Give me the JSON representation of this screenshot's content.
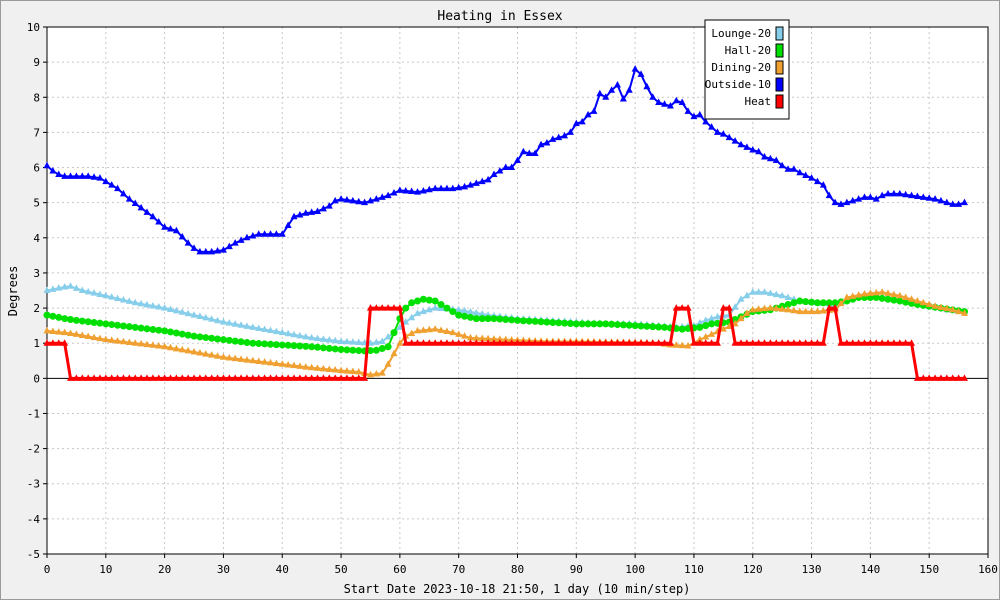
{
  "chart_data": {
    "type": "line",
    "title": "Heating in Essex",
    "xlabel": "Start Date 2023-10-18 21:50, 1 day (10 min/step)",
    "ylabel": "Degrees",
    "xlim": [
      0,
      160
    ],
    "ylim": [
      -5,
      10
    ],
    "x_ticks": [
      0,
      10,
      20,
      30,
      40,
      50,
      60,
      70,
      80,
      90,
      100,
      110,
      120,
      130,
      140,
      150,
      160
    ],
    "y_ticks": [
      -5,
      -4,
      -3,
      -2,
      -1,
      0,
      1,
      2,
      3,
      4,
      5,
      6,
      7,
      8,
      9,
      10
    ],
    "grid": true,
    "legend_position": "top-right",
    "series": [
      {
        "name": "Lounge-20",
        "color": "#87ceeb",
        "marker": "triangle",
        "points": [
          [
            0,
            2.5
          ],
          [
            3,
            2.6
          ],
          [
            4,
            2.62
          ],
          [
            6,
            2.5
          ],
          [
            10,
            2.35
          ],
          [
            15,
            2.15
          ],
          [
            20,
            2.0
          ],
          [
            25,
            1.8
          ],
          [
            30,
            1.6
          ],
          [
            35,
            1.45
          ],
          [
            40,
            1.3
          ],
          [
            45,
            1.15
          ],
          [
            50,
            1.05
          ],
          [
            55,
            1.0
          ],
          [
            57,
            1.05
          ],
          [
            59,
            1.3
          ],
          [
            61,
            1.6
          ],
          [
            63,
            1.85
          ],
          [
            66,
            2.0
          ],
          [
            70,
            1.95
          ],
          [
            75,
            1.8
          ],
          [
            80,
            1.7
          ],
          [
            85,
            1.65
          ],
          [
            90,
            1.6
          ],
          [
            95,
            1.55
          ],
          [
            100,
            1.55
          ],
          [
            104,
            1.5
          ],
          [
            107,
            1.45
          ],
          [
            110,
            1.5
          ],
          [
            112,
            1.65
          ],
          [
            114,
            1.75
          ],
          [
            116,
            1.8
          ],
          [
            118,
            2.25
          ],
          [
            120,
            2.45
          ],
          [
            122,
            2.45
          ],
          [
            125,
            2.35
          ],
          [
            128,
            2.2
          ],
          [
            131,
            2.15
          ],
          [
            134,
            2.1
          ],
          [
            137,
            2.3
          ],
          [
            140,
            2.35
          ],
          [
            143,
            2.3
          ],
          [
            146,
            2.2
          ],
          [
            150,
            2.05
          ],
          [
            153,
            1.95
          ],
          [
            156,
            1.9
          ]
        ]
      },
      {
        "name": "Hall-20",
        "color": "#00e000",
        "marker": "circle",
        "points": [
          [
            0,
            1.8
          ],
          [
            3,
            1.7
          ],
          [
            5,
            1.65
          ],
          [
            10,
            1.55
          ],
          [
            15,
            1.45
          ],
          [
            20,
            1.35
          ],
          [
            25,
            1.2
          ],
          [
            30,
            1.1
          ],
          [
            35,
            1.0
          ],
          [
            40,
            0.95
          ],
          [
            45,
            0.9
          ],
          [
            50,
            0.82
          ],
          [
            54,
            0.78
          ],
          [
            56,
            0.8
          ],
          [
            58,
            0.9
          ],
          [
            59,
            1.3
          ],
          [
            60,
            1.7
          ],
          [
            61,
            2.0
          ],
          [
            62,
            2.15
          ],
          [
            64,
            2.25
          ],
          [
            66,
            2.2
          ],
          [
            68,
            2.0
          ],
          [
            70,
            1.8
          ],
          [
            73,
            1.7
          ],
          [
            76,
            1.7
          ],
          [
            80,
            1.65
          ],
          [
            85,
            1.6
          ],
          [
            90,
            1.55
          ],
          [
            95,
            1.55
          ],
          [
            100,
            1.5
          ],
          [
            105,
            1.45
          ],
          [
            108,
            1.4
          ],
          [
            111,
            1.45
          ],
          [
            113,
            1.55
          ],
          [
            116,
            1.6
          ],
          [
            118,
            1.75
          ],
          [
            120,
            1.9
          ],
          [
            123,
            1.95
          ],
          [
            126,
            2.1
          ],
          [
            128,
            2.2
          ],
          [
            131,
            2.15
          ],
          [
            134,
            2.15
          ],
          [
            136,
            2.2
          ],
          [
            138,
            2.3
          ],
          [
            141,
            2.3
          ],
          [
            145,
            2.2
          ],
          [
            148,
            2.1
          ],
          [
            152,
            2.0
          ],
          [
            156,
            1.9
          ]
        ]
      },
      {
        "name": "Dining-20",
        "color": "#f0a030",
        "marker": "triangle",
        "points": [
          [
            0,
            1.35
          ],
          [
            3,
            1.3
          ],
          [
            5,
            1.25
          ],
          [
            10,
            1.1
          ],
          [
            15,
            1.0
          ],
          [
            20,
            0.9
          ],
          [
            25,
            0.75
          ],
          [
            30,
            0.6
          ],
          [
            35,
            0.5
          ],
          [
            40,
            0.4
          ],
          [
            45,
            0.3
          ],
          [
            50,
            0.22
          ],
          [
            53,
            0.18
          ],
          [
            55,
            0.1
          ],
          [
            57,
            0.15
          ],
          [
            58,
            0.4
          ],
          [
            59,
            0.7
          ],
          [
            60,
            1.0
          ],
          [
            61,
            1.2
          ],
          [
            63,
            1.35
          ],
          [
            66,
            1.4
          ],
          [
            69,
            1.3
          ],
          [
            72,
            1.15
          ],
          [
            78,
            1.1
          ],
          [
            85,
            1.05
          ],
          [
            90,
            1.05
          ],
          [
            95,
            1.03
          ],
          [
            100,
            1.02
          ],
          [
            104,
            1.0
          ],
          [
            106,
            0.95
          ],
          [
            109,
            0.92
          ],
          [
            111,
            1.1
          ],
          [
            113,
            1.25
          ],
          [
            115,
            1.4
          ],
          [
            117,
            1.55
          ],
          [
            118,
            1.7
          ],
          [
            119,
            1.85
          ],
          [
            120,
            1.95
          ],
          [
            123,
            2.0
          ],
          [
            126,
            1.95
          ],
          [
            128,
            1.9
          ],
          [
            131,
            1.9
          ],
          [
            134,
            1.95
          ],
          [
            136,
            2.3
          ],
          [
            139,
            2.4
          ],
          [
            142,
            2.45
          ],
          [
            145,
            2.35
          ],
          [
            148,
            2.2
          ],
          [
            151,
            2.05
          ],
          [
            154,
            1.95
          ],
          [
            156,
            1.85
          ]
        ]
      },
      {
        "name": "Outside-10",
        "color": "#0000ff",
        "marker": "triangle",
        "points": [
          [
            0,
            6.05
          ],
          [
            1,
            5.9
          ],
          [
            2,
            5.8
          ],
          [
            3,
            5.75
          ],
          [
            5,
            5.75
          ],
          [
            7,
            5.75
          ],
          [
            9,
            5.7
          ],
          [
            10,
            5.6
          ],
          [
            12,
            5.4
          ],
          [
            14,
            5.1
          ],
          [
            16,
            4.85
          ],
          [
            18,
            4.6
          ],
          [
            20,
            4.3
          ],
          [
            22,
            4.2
          ],
          [
            24,
            3.85
          ],
          [
            25,
            3.7
          ],
          [
            26,
            3.6
          ],
          [
            28,
            3.6
          ],
          [
            30,
            3.65
          ],
          [
            32,
            3.85
          ],
          [
            34,
            4.0
          ],
          [
            36,
            4.1
          ],
          [
            38,
            4.1
          ],
          [
            40,
            4.1
          ],
          [
            41,
            4.35
          ],
          [
            42,
            4.6
          ],
          [
            44,
            4.7
          ],
          [
            46,
            4.75
          ],
          [
            48,
            4.9
          ],
          [
            49,
            5.05
          ],
          [
            50,
            5.1
          ],
          [
            52,
            5.05
          ],
          [
            54,
            5.0
          ],
          [
            56,
            5.1
          ],
          [
            58,
            5.2
          ],
          [
            60,
            5.35
          ],
          [
            63,
            5.3
          ],
          [
            66,
            5.4
          ],
          [
            69,
            5.4
          ],
          [
            71,
            5.45
          ],
          [
            73,
            5.55
          ],
          [
            75,
            5.65
          ],
          [
            76,
            5.8
          ],
          [
            78,
            6.0
          ],
          [
            79,
            6.0
          ],
          [
            80,
            6.2
          ],
          [
            81,
            6.45
          ],
          [
            82,
            6.4
          ],
          [
            83,
            6.4
          ],
          [
            84,
            6.65
          ],
          [
            85,
            6.7
          ],
          [
            86,
            6.8
          ],
          [
            88,
            6.9
          ],
          [
            89,
            7.0
          ],
          [
            90,
            7.25
          ],
          [
            91,
            7.3
          ],
          [
            92,
            7.5
          ],
          [
            93,
            7.6
          ],
          [
            94,
            8.1
          ],
          [
            95,
            8.0
          ],
          [
            96,
            8.2
          ],
          [
            97,
            8.35
          ],
          [
            98,
            7.95
          ],
          [
            99,
            8.2
          ],
          [
            100,
            8.8
          ],
          [
            101,
            8.65
          ],
          [
            102,
            8.3
          ],
          [
            103,
            8.0
          ],
          [
            104,
            7.85
          ],
          [
            105,
            7.8
          ],
          [
            106,
            7.75
          ],
          [
            107,
            7.9
          ],
          [
            108,
            7.85
          ],
          [
            109,
            7.6
          ],
          [
            110,
            7.45
          ],
          [
            111,
            7.5
          ],
          [
            112,
            7.3
          ],
          [
            113,
            7.15
          ],
          [
            114,
            7.0
          ],
          [
            115,
            6.95
          ],
          [
            116,
            6.85
          ],
          [
            117,
            6.75
          ],
          [
            118,
            6.65
          ],
          [
            120,
            6.5
          ],
          [
            121,
            6.45
          ],
          [
            122,
            6.3
          ],
          [
            124,
            6.2
          ],
          [
            125,
            6.05
          ],
          [
            126,
            5.95
          ],
          [
            127,
            5.95
          ],
          [
            128,
            5.85
          ],
          [
            130,
            5.7
          ],
          [
            131,
            5.6
          ],
          [
            132,
            5.5
          ],
          [
            133,
            5.2
          ],
          [
            134,
            5.0
          ],
          [
            135,
            4.95
          ],
          [
            136,
            5.0
          ],
          [
            137,
            5.05
          ],
          [
            138,
            5.1
          ],
          [
            139,
            5.15
          ],
          [
            140,
            5.15
          ],
          [
            141,
            5.1
          ],
          [
            142,
            5.2
          ],
          [
            143,
            5.25
          ],
          [
            145,
            5.25
          ],
          [
            147,
            5.2
          ],
          [
            149,
            5.15
          ],
          [
            151,
            5.1
          ],
          [
            153,
            5.0
          ],
          [
            154,
            4.95
          ],
          [
            155,
            4.95
          ],
          [
            156,
            5.0
          ]
        ]
      },
      {
        "name": "Heat",
        "color": "#ff0000",
        "marker": "triangle",
        "points": [
          [
            0,
            1
          ],
          [
            3,
            1
          ],
          [
            4,
            0
          ],
          [
            54,
            0
          ],
          [
            55,
            2
          ],
          [
            60,
            2
          ],
          [
            61,
            1
          ],
          [
            106,
            1
          ],
          [
            107,
            2
          ],
          [
            109,
            2
          ],
          [
            110,
            1
          ],
          [
            114,
            1
          ],
          [
            115,
            2
          ],
          [
            116,
            2
          ],
          [
            117,
            1
          ],
          [
            132,
            1
          ],
          [
            133,
            2
          ],
          [
            134,
            2
          ],
          [
            135,
            1
          ],
          [
            147,
            1
          ],
          [
            148,
            0
          ],
          [
            156,
            0
          ]
        ]
      }
    ]
  }
}
